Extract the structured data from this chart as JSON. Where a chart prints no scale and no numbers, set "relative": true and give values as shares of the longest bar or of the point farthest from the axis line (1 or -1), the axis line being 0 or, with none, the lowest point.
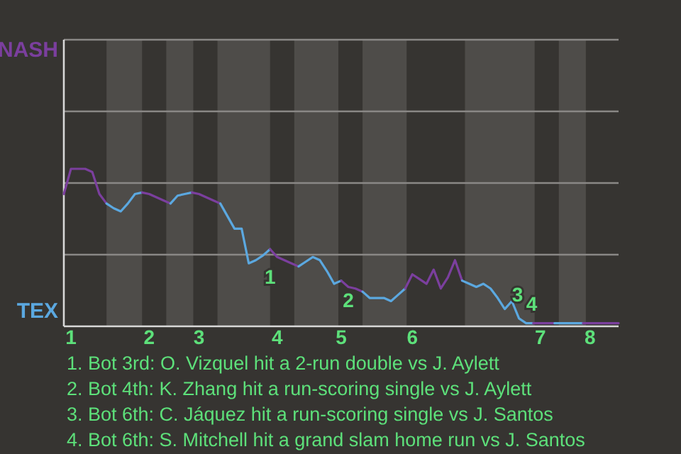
{
  "chart_data": {
    "type": "line",
    "relative": true,
    "legend": "left",
    "categories": [
      null,
      "1",
      null,
      null,
      null,
      null,
      null,
      null,
      null,
      null,
      null,
      null,
      "2",
      null,
      null,
      null,
      null,
      null,
      null,
      "3",
      null,
      null,
      null,
      null,
      null,
      null,
      null,
      null,
      null,
      null,
      "4",
      null,
      null,
      null,
      null,
      null,
      null,
      null,
      null,
      "5",
      null,
      null,
      null,
      null,
      null,
      null,
      null,
      null,
      null,
      "6",
      null,
      null,
      null,
      null,
      null,
      null,
      null,
      null,
      null,
      null,
      null,
      null,
      null,
      null,
      null,
      null,
      null,
      "7",
      null,
      null,
      null,
      null,
      null,
      null,
      "8",
      null,
      null,
      null,
      null
    ],
    "ref_lines": [
      {
        "axis": "y",
        "value": 0.455,
        "color": "#8a8886"
      },
      {
        "axis": "y",
        "value": 0.91,
        "color": "#8a8886"
      },
      {
        "axis": "y",
        "value": 1.365,
        "color": "#8a8886"
      },
      {
        "axis": "y",
        "value": 1.82,
        "color": "#8a8886"
      }
    ],
    "series": [
      {
        "name": "NASH",
        "color": "#7b3f9e",
        "values": [
          0.84,
          1,
          1,
          1,
          0.98,
          0.84,
          0.78,
          null,
          null,
          null,
          null,
          null,
          null,
          null,
          null,
          null,
          null,
          null,
          null,
          null,
          null,
          null,
          null,
          null,
          null,
          null,
          null,
          null,
          null,
          null,
          null,
          null,
          null,
          null,
          null,
          null,
          null,
          null,
          null,
          null,
          null,
          null,
          null,
          null,
          null,
          null,
          null,
          null,
          null,
          null,
          null,
          null,
          null,
          null,
          null,
          null,
          null,
          null,
          null,
          null,
          null,
          null,
          null,
          null,
          null,
          null,
          null,
          null,
          null,
          null,
          null,
          null,
          null,
          null,
          null,
          null,
          null,
          null,
          null
        ]
      },
      {
        "name": "TEX",
        "color": "#5ba8e0",
        "values": [
          null,
          null,
          null,
          null,
          null,
          null,
          0.78,
          0.75,
          0.73,
          0.78,
          0.84,
          0.85,
          null,
          null,
          null,
          null,
          null,
          null,
          null,
          null,
          null,
          null,
          null,
          null,
          null,
          null,
          null,
          null,
          null,
          null,
          null,
          null,
          null,
          null,
          null,
          null,
          null,
          null,
          null,
          null,
          null,
          null,
          null,
          null,
          null,
          null,
          null,
          null,
          null,
          null,
          null,
          null,
          null,
          null,
          null,
          null,
          null,
          null,
          null,
          null,
          null,
          null,
          null,
          null,
          null,
          null,
          null,
          null,
          null,
          null,
          null,
          null,
          null,
          null,
          null,
          null,
          null,
          null,
          null
        ]
      },
      {
        "color": "#7b3f9e",
        "values": [
          null,
          null,
          null,
          null,
          null,
          null,
          null,
          null,
          null,
          null,
          null,
          0.85,
          0.84,
          0.82,
          0.8,
          0.78,
          null,
          null,
          null,
          null,
          null,
          null,
          null,
          null,
          null,
          null,
          null,
          null,
          null,
          null,
          null,
          null,
          null,
          null,
          null,
          null,
          null,
          null,
          null,
          null,
          null,
          null,
          null,
          null,
          null,
          null,
          null,
          null,
          null,
          null,
          null,
          null,
          null,
          null,
          null,
          null,
          null,
          null,
          null,
          null,
          null,
          null,
          null,
          null,
          null,
          null,
          null,
          null,
          null,
          null,
          null,
          null,
          null,
          null,
          null,
          null,
          null,
          null,
          null
        ]
      },
      {
        "color": "#5ba8e0",
        "values": [
          null,
          null,
          null,
          null,
          null,
          null,
          null,
          null,
          null,
          null,
          null,
          null,
          null,
          null,
          null,
          0.78,
          0.83,
          0.84,
          0.85,
          null,
          null,
          null,
          null,
          null,
          null,
          null,
          null,
          null,
          null,
          null,
          null,
          null,
          null,
          null,
          null,
          null,
          null,
          null,
          null,
          null,
          null,
          null,
          null,
          null,
          null,
          null,
          null,
          null,
          null,
          null,
          null,
          null,
          null,
          null,
          null,
          null,
          null,
          null,
          null,
          null,
          null,
          null,
          null,
          null,
          null,
          null,
          null,
          null,
          null,
          null,
          null,
          null,
          null,
          null,
          null,
          null,
          null,
          null,
          null
        ]
      },
      {
        "color": "#7b3f9e",
        "values": [
          null,
          null,
          null,
          null,
          null,
          null,
          null,
          null,
          null,
          null,
          null,
          null,
          null,
          null,
          null,
          null,
          null,
          null,
          0.85,
          0.84,
          0.82,
          0.8,
          0.78,
          null,
          null,
          null,
          null,
          null,
          null,
          null,
          null,
          null,
          null,
          null,
          null,
          null,
          null,
          null,
          null,
          null,
          null,
          null,
          null,
          null,
          null,
          null,
          null,
          null,
          null,
          null,
          null,
          null,
          null,
          null,
          null,
          null,
          null,
          null,
          null,
          null,
          null,
          null,
          null,
          null,
          null,
          null,
          null,
          null,
          null,
          null,
          null,
          null,
          null,
          null,
          null,
          null,
          null,
          null,
          null
        ]
      },
      {
        "color": "#5ba8e0",
        "values": [
          null,
          null,
          null,
          null,
          null,
          null,
          null,
          null,
          null,
          null,
          null,
          null,
          null,
          null,
          null,
          null,
          null,
          null,
          null,
          null,
          null,
          null,
          0.78,
          0.7,
          0.62,
          0.62,
          0.4,
          0.42,
          0.45,
          0.49,
          null,
          null,
          null,
          null,
          null,
          null,
          null,
          null,
          null,
          null,
          null,
          null,
          null,
          null,
          null,
          null,
          null,
          null,
          null,
          null,
          null,
          null,
          null,
          null,
          null,
          null,
          null,
          null,
          null,
          null,
          null,
          null,
          null,
          null,
          null,
          null,
          null,
          null,
          null,
          null,
          null,
          null,
          null,
          null,
          null,
          null,
          null,
          null,
          null
        ]
      },
      {
        "color": "#7b3f9e",
        "values": [
          null,
          null,
          null,
          null,
          null,
          null,
          null,
          null,
          null,
          null,
          null,
          null,
          null,
          null,
          null,
          null,
          null,
          null,
          null,
          null,
          null,
          null,
          null,
          null,
          null,
          null,
          null,
          null,
          null,
          0.49,
          0.44,
          0.42,
          0.4,
          0.38,
          null,
          null,
          null,
          null,
          null,
          null,
          null,
          null,
          null,
          null,
          null,
          null,
          null,
          null,
          null,
          null,
          null,
          null,
          null,
          null,
          null,
          null,
          null,
          null,
          null,
          null,
          null,
          null,
          null,
          null,
          null,
          null,
          null,
          null,
          null,
          null,
          null,
          null,
          null,
          null,
          null,
          null,
          null,
          null,
          null
        ]
      },
      {
        "color": "#5ba8e0",
        "values": [
          null,
          null,
          null,
          null,
          null,
          null,
          null,
          null,
          null,
          null,
          null,
          null,
          null,
          null,
          null,
          null,
          null,
          null,
          null,
          null,
          null,
          null,
          null,
          null,
          null,
          null,
          null,
          null,
          null,
          null,
          null,
          null,
          null,
          0.38,
          0.41,
          0.44,
          0.42,
          0.35,
          0.27,
          0.29,
          null,
          null,
          null,
          null,
          null,
          null,
          null,
          null,
          null,
          null,
          null,
          null,
          null,
          null,
          null,
          null,
          null,
          null,
          null,
          null,
          null,
          null,
          null,
          null,
          null,
          null,
          null,
          null,
          null,
          null,
          null,
          null,
          null,
          null,
          null,
          null,
          null,
          null,
          null
        ]
      },
      {
        "color": "#7b3f9e",
        "values": [
          null,
          null,
          null,
          null,
          null,
          null,
          null,
          null,
          null,
          null,
          null,
          null,
          null,
          null,
          null,
          null,
          null,
          null,
          null,
          null,
          null,
          null,
          null,
          null,
          null,
          null,
          null,
          null,
          null,
          null,
          null,
          null,
          null,
          null,
          null,
          null,
          null,
          null,
          null,
          0.29,
          0.25,
          0.24,
          0.22,
          null,
          null,
          null,
          null,
          null,
          null,
          null,
          null,
          null,
          null,
          null,
          null,
          null,
          null,
          null,
          null,
          null,
          null,
          null,
          null,
          null,
          null,
          null,
          null,
          null,
          null,
          null,
          null,
          null,
          null,
          null,
          null,
          null,
          null,
          null,
          null
        ]
      },
      {
        "color": "#5ba8e0",
        "values": [
          null,
          null,
          null,
          null,
          null,
          null,
          null,
          null,
          null,
          null,
          null,
          null,
          null,
          null,
          null,
          null,
          null,
          null,
          null,
          null,
          null,
          null,
          null,
          null,
          null,
          null,
          null,
          null,
          null,
          null,
          null,
          null,
          null,
          null,
          null,
          null,
          null,
          null,
          null,
          null,
          null,
          null,
          0.22,
          0.18,
          0.18,
          0.18,
          0.16,
          0.2,
          0.24,
          null,
          null,
          null,
          null,
          null,
          null,
          null,
          null,
          null,
          null,
          null,
          null,
          null,
          null,
          null,
          null,
          null,
          null,
          null,
          null,
          null,
          null,
          null,
          null,
          null,
          null,
          null,
          null,
          null,
          null
        ]
      },
      {
        "color": "#7b3f9e",
        "values": [
          null,
          null,
          null,
          null,
          null,
          null,
          null,
          null,
          null,
          null,
          null,
          null,
          null,
          null,
          null,
          null,
          null,
          null,
          null,
          null,
          null,
          null,
          null,
          null,
          null,
          null,
          null,
          null,
          null,
          null,
          null,
          null,
          null,
          null,
          null,
          null,
          null,
          null,
          null,
          null,
          null,
          null,
          null,
          null,
          null,
          null,
          null,
          null,
          0.24,
          0.33,
          0.3,
          0.27,
          0.36,
          0.24,
          0.31,
          0.42,
          0.29,
          null,
          null,
          null,
          null,
          null,
          null,
          null,
          null,
          null,
          null,
          null,
          null,
          null,
          null,
          null,
          null,
          null,
          null,
          null,
          null,
          null,
          null
        ]
      },
      {
        "color": "#5ba8e0",
        "values": [
          null,
          null,
          null,
          null,
          null,
          null,
          null,
          null,
          null,
          null,
          null,
          null,
          null,
          null,
          null,
          null,
          null,
          null,
          null,
          null,
          null,
          null,
          null,
          null,
          null,
          null,
          null,
          null,
          null,
          null,
          null,
          null,
          null,
          null,
          null,
          null,
          null,
          null,
          null,
          null,
          null,
          null,
          null,
          null,
          null,
          null,
          null,
          null,
          null,
          null,
          null,
          null,
          null,
          null,
          null,
          null,
          0.29,
          0.27,
          0.25,
          0.27,
          0.24,
          0.18,
          0.11,
          0.16,
          0.05,
          0.02,
          0.02,
          null,
          null,
          null,
          null,
          null,
          null,
          null,
          null,
          null,
          null,
          null,
          null
        ]
      },
      {
        "color": "#7b3f9e",
        "values": [
          null,
          null,
          null,
          null,
          null,
          null,
          null,
          null,
          null,
          null,
          null,
          null,
          null,
          null,
          null,
          null,
          null,
          null,
          null,
          null,
          null,
          null,
          null,
          null,
          null,
          null,
          null,
          null,
          null,
          null,
          null,
          null,
          null,
          null,
          null,
          null,
          null,
          null,
          null,
          null,
          null,
          null,
          null,
          null,
          null,
          null,
          null,
          null,
          null,
          null,
          null,
          null,
          null,
          null,
          null,
          null,
          null,
          null,
          null,
          null,
          null,
          null,
          null,
          null,
          null,
          null,
          0.02,
          0.02,
          0.02,
          0.02,
          null,
          null,
          null,
          null,
          null,
          null,
          null,
          null,
          null
        ]
      },
      {
        "color": "#5ba8e0",
        "values": [
          null,
          null,
          null,
          null,
          null,
          null,
          null,
          null,
          null,
          null,
          null,
          null,
          null,
          null,
          null,
          null,
          null,
          null,
          null,
          null,
          null,
          null,
          null,
          null,
          null,
          null,
          null,
          null,
          null,
          null,
          null,
          null,
          null,
          null,
          null,
          null,
          null,
          null,
          null,
          null,
          null,
          null,
          null,
          null,
          null,
          null,
          null,
          null,
          null,
          null,
          null,
          null,
          null,
          null,
          null,
          null,
          null,
          null,
          null,
          null,
          null,
          null,
          null,
          null,
          null,
          null,
          null,
          null,
          null,
          0.02,
          0.02,
          0.02,
          0.02,
          0.02,
          null,
          null,
          null,
          null,
          null
        ]
      },
      {
        "color": "#7b3f9e",
        "values": [
          null,
          null,
          null,
          null,
          null,
          null,
          null,
          null,
          null,
          null,
          null,
          null,
          null,
          null,
          null,
          null,
          null,
          null,
          null,
          null,
          null,
          null,
          null,
          null,
          null,
          null,
          null,
          null,
          null,
          null,
          null,
          null,
          null,
          null,
          null,
          null,
          null,
          null,
          null,
          null,
          null,
          null,
          null,
          null,
          null,
          null,
          null,
          null,
          null,
          null,
          null,
          null,
          null,
          null,
          null,
          null,
          null,
          null,
          null,
          null,
          null,
          null,
          null,
          null,
          null,
          null,
          null,
          null,
          null,
          null,
          null,
          null,
          null,
          0.02,
          0.02,
          0.02,
          0.02,
          0.02,
          0.02
        ]
      }
    ],
    "annotations": [
      {
        "text": "1",
        "y": 0.42
      },
      {
        "text": "2",
        "y": 0.27
      },
      {
        "text": "3",
        "y": 0.11
      },
      {
        "text": "4",
        "y": 0.05
      },
      "1. Bot 3rd: O. Vizquel hit a 2-run double vs J. Aylett",
      "2. Bot 4th: K. Zhang hit a run-scoring single vs J. Aylett",
      "3. Bot 6th: C. Jáquez hit a run-scoring single vs J. Santos",
      "4. Bot 6th: S. Mitchell hit a grand slam home run vs J. Santos"
    ]
  }
}
